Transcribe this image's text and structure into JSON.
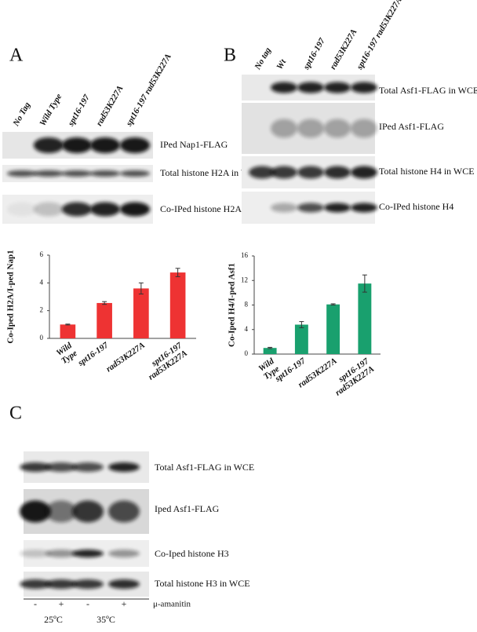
{
  "panel_a": {
    "label": "A",
    "lanes": [
      "No Tag",
      "Wild Type",
      "spt16-197",
      "rad53K227A",
      "spt16-197 rad53K227A"
    ],
    "blots": [
      "IPed Nap1-FLAG",
      "Total histone H2A in WCE",
      "Co-IPed histone H2A"
    ]
  },
  "panel_b": {
    "label": "B",
    "lanes": [
      "No tag",
      "Wt",
      "spt16-197",
      "rad53K227A",
      "spt16-197 rad53K227A"
    ],
    "blots": [
      "Total Asf1-FLAG in WCE",
      "IPed Asf1-FLAG",
      "Total histone H4 in WCE",
      "Co-IPed histone H4"
    ]
  },
  "chart_data": [
    {
      "type": "bar",
      "ylabel": "Co-Iped H2A/I-ped Nap1",
      "categories": [
        "Wild Type",
        "spt16-197",
        "rad53K227A",
        "spt16-197 rad53K227A"
      ],
      "values": [
        1.0,
        2.55,
        3.6,
        4.75
      ],
      "errors": [
        0.03,
        0.1,
        0.4,
        0.3
      ],
      "color": "#ee3333",
      "ylim": [
        0,
        6
      ],
      "yticks": [
        0,
        2,
        4,
        6
      ]
    },
    {
      "type": "bar",
      "ylabel": "Co-Iped H4/I-ped Asf1",
      "categories": [
        "Wild Type",
        "spt16-197",
        "rad53K227A",
        "spt16-197 rad53K227A"
      ],
      "values": [
        1.0,
        4.8,
        8.1,
        11.5
      ],
      "errors": [
        0.1,
        0.5,
        0.1,
        1.4
      ],
      "color": "#19a06e",
      "ylim": [
        0,
        16
      ],
      "yticks": [
        0,
        4,
        8,
        12,
        16
      ]
    }
  ],
  "panel_c": {
    "label": "C",
    "blots": [
      "Total Asf1-FLAG in WCE",
      "Iped Asf1-FLAG",
      "Co-Iped histone H3",
      "Total histone H3 in WCE"
    ],
    "treatment": [
      "-",
      "+",
      "-",
      "+"
    ],
    "treatment_label": "μ-amanitin",
    "temperatures": [
      "25ºC",
      "35ºC"
    ]
  }
}
